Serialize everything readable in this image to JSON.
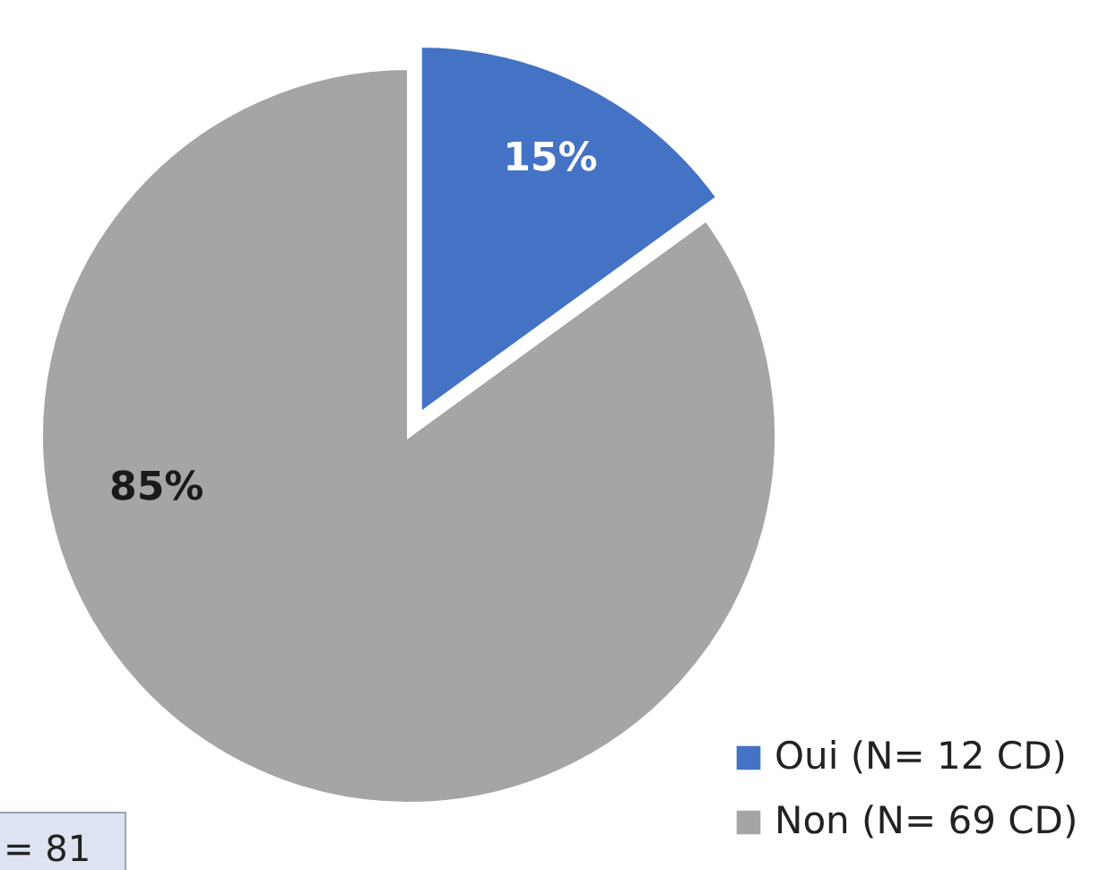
{
  "chart_data": {
    "type": "pie",
    "categories": [
      "Oui (N= 12 CD)",
      "Non (N= 69 CD)"
    ],
    "values": [
      15,
      85
    ],
    "colors": [
      "#4472c4",
      "#a5a5a5"
    ],
    "value_labels": [
      "15%",
      "85%"
    ],
    "legend": "bottom right",
    "annotations": [
      "= 81"
    ]
  }
}
